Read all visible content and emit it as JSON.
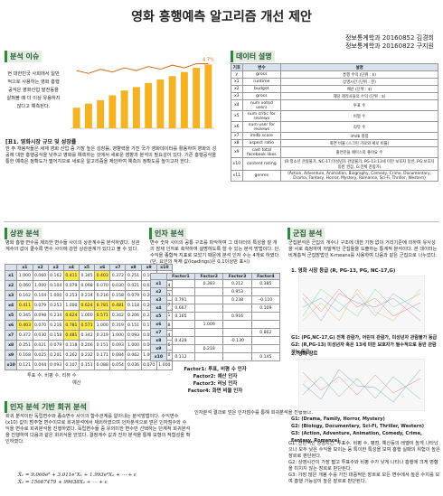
{
  "title": "영화 흥행예측 알고리즘 개선 제안",
  "authors": [
    "정보통계학과 20160852 김경희",
    "정보통계학과 20160822 구지원"
  ],
  "issue": {
    "heading": "분석 이슈",
    "text": "현 대한민국 사회에서 일반적으로 사용하는 영화 흥행공식은 영화산업 발전동을 살펴볼 때 더 이상 유용하지 않다고 예측된다.",
    "chart": {
      "bars": [
        30,
        36,
        41,
        48,
        55,
        60,
        66,
        71,
        76,
        82,
        88,
        93
      ],
      "bar_color": "#f5b324",
      "line": [
        4.2,
        4.0,
        4.3,
        4.1,
        4.4,
        4.2,
        4.5,
        4.3,
        4.6,
        4.4,
        4.7,
        4.7
      ],
      "line_color": "#e06c1b",
      "ylim": [
        0,
        100
      ],
      "y2lim": [
        0,
        5
      ],
      "annotation": "4.7%"
    },
    "caption": "[표1. 영화시장 규모 및 성장률",
    "paragraph": "한 주 개봉작들은 세계 영화 산업 중 가장 높은 성장률, 영향력을 가진 국가 영화데이터를 활용하여 영화의 성공에 대한 흥행공식을 낮추고 영화를 예측하는 것에서 새로운 영향과 분석의 필요성이 있다. 기존 흥행공식을 통한 예측은 정확도가 떨어지므로 새로운 알고리즘을 제안하여 예측의 정확도를 높이고자 한다."
  },
  "data_desc": {
    "heading": "데이터 설명",
    "columns": [
      "기호",
      "변수",
      "설명"
    ],
    "rows": [
      [
        "y",
        "gross",
        "흥행 수익 (단위 : $)"
      ],
      [
        "x1",
        "runtime",
        "상영시간 (단위 : 분)"
      ],
      [
        "x2",
        "budget",
        "예산 (단위 : $)"
      ],
      [
        "x3",
        "gross",
        "해당 제작사들의 수익 (단위 : $)"
      ],
      [
        "x4",
        "num voted users",
        "투표 수"
      ],
      [
        "x5",
        "num critic for reviews",
        "비평 수"
      ],
      [
        "x6",
        "num user for reviews",
        "리뷰 수"
      ],
      [
        "x7",
        "imdb score",
        "imdb 평점"
      ],
      [
        "x8",
        "aspect ratio",
        "화면 비율 (스크린 가로와 세로 비율)"
      ],
      [
        "x9",
        "cast total facebook likes",
        "출연진들 페이스북 좋아요 수"
      ],
      [
        "x10",
        "content rating",
        "(R:청소년 관람불가, NC-17:미성년자 관람불가, PG-13:13세 미만 보호자 동반, PG:보호자 동반 권장, G:전체 관람가)"
      ],
      [
        "x11",
        "genres",
        "(Action, Adventure, Animation, Biography, Comedy, Crime, Documentary, Drama, Fantasy, Horror, Mystery, Romance, Sci-Fi, Thriller, Western)"
      ]
    ]
  },
  "correlation": {
    "heading": "상관 분석",
    "text": "영화 흥행 변수를 제외한 변수들 사이의 상관계수를 분석하였다. 상관계수의 값이 클수록 변수 사이에 강한 상관관계가 있다고 볼 수 있다.",
    "labels": [
      "x1",
      "x2",
      "x3",
      "x4",
      "x5",
      "x6",
      "x7",
      "x8",
      "x9",
      "x10"
    ],
    "highlight_color": "#ffe94d",
    "rows": [
      [
        "1.000",
        "0.060",
        "0.162",
        "0.411",
        "0.345",
        "0.403",
        "0.372",
        "0.251",
        "0.168",
        "0.121"
      ],
      [
        "0.060",
        "1.000",
        "0.104",
        "0.079",
        "0.098",
        "0.070",
        "0.030",
        "0.021",
        "0.025",
        "0.044"
      ],
      [
        "0.162",
        "0.104",
        "1.000",
        "0.253",
        "0.234",
        "0.216",
        "0.158",
        "0.079",
        "0.201",
        "0.093"
      ],
      [
        "0.411",
        "0.079",
        "0.253",
        "1.000",
        "0.624",
        "0.781",
        "0.481",
        "0.118",
        "0.262",
        "0.107"
      ],
      [
        "0.345",
        "0.098",
        "0.234",
        "0.624",
        "1.000",
        "0.571",
        "0.342",
        "0.206",
        "0.232",
        "0.151"
      ],
      [
        "0.403",
        "0.070",
        "0.216",
        "0.781",
        "0.571",
        "1.000",
        "0.319",
        "0.151",
        "0.171",
        "0.088"
      ],
      [
        "0.372",
        "0.030",
        "0.158",
        "0.481",
        "0.342",
        "0.319",
        "1.000",
        "0.093",
        "0.084",
        "0.054"
      ],
      [
        "0.251",
        "0.021",
        "0.079",
        "0.118",
        "0.206",
        "0.151",
        "0.093",
        "1.000",
        "0.062",
        "0.036"
      ],
      [
        "0.168",
        "0.025",
        "0.201",
        "0.262",
        "0.232",
        "0.171",
        "0.084",
        "0.062",
        "1.000",
        "0.070"
      ],
      [
        "0.121",
        "0.044",
        "0.093",
        "0.107",
        "0.151",
        "0.088",
        "0.054",
        "0.036",
        "0.070",
        "1.000"
      ]
    ],
    "notes": [
      "투표 수, 비평 수, 리뷰 수",
      "예산"
    ]
  },
  "factor": {
    "heading": "인자 분석",
    "text": "변수 숫자 사이의 공통 구조를 파악하여 그 데이터의 특성을 잘 개의 잠재 인자로 축약하여 설명하도록 할 수 있는 분석 방법이다. 단, 수익을 종합적 지표로 보았기 때문에 분석 인자 수는 4개로 하였다. (단, 요인의 적재 값(loadings)은 0.1이상만 표시)",
    "columns": [
      "Factor1",
      "Factor2",
      "Factor3",
      "Factor4"
    ],
    "labels": [
      "x1",
      "x2",
      "x3",
      "x4",
      "x5",
      "x6",
      "x7",
      "x8",
      "x9",
      "x10"
    ],
    "rows": [
      [
        null,
        "0.383",
        "0.212",
        "0.385"
      ],
      [
        null,
        null,
        "0.953",
        null
      ],
      [
        "0.791",
        null,
        "0.238",
        "-0.110"
      ],
      [
        "0.667",
        null,
        null,
        "0.109"
      ],
      [
        "0.165",
        null,
        "0.916",
        null
      ],
      [
        null,
        "1.009",
        null,
        null
      ],
      [
        null,
        null,
        null,
        "0.862"
      ],
      [
        "0.429",
        null,
        "-0.130",
        null
      ],
      [
        null,
        "0.218",
        null,
        null
      ],
      [
        "0.112",
        null,
        null,
        "0.145"
      ]
    ],
    "factors": [
      "Factor1: 투표, 비평 수 인자",
      "Factor2: 예산 인자",
      "Factor3: 러닝 인자",
      "Factor4: 화면 비율 인자"
    ],
    "result": "인자분석 결과로 얻은 인자점수를 통해 회귀분석을 진행했다."
  },
  "regression": {
    "heading": "인자 분석 기반 회귀 분석",
    "text": "회귀 분석이란 독립변수와 종속변수 사이의 함수관계를 알아내는 분석방법이다. 수익변수(x10) 값이 범주형 변수이므로 회귀분석에서 제외하였으며 인자분석으로 얻은 인자점수와 수익을 변수로 회귀분석을 진행하였다. 독립변수들 중 유의미한 변수만 선택하는 단계적 회귀분석을 진행하여 다음과 같은 회귀식을 얻었다. 결정계수 값과 잔차 분석을 통해 모형의 적합성을 확인하였다.",
    "formulas": [
      "X̂₁ = 9.066e⁸ + 3.011e⁷X₁ + 1.993e⁸X₂ + ⋯ + ε",
      "X̂₂ = 15667479 + 99638X₂ + ⋯ + ε"
    ]
  },
  "cluster": {
    "heading": "군집 분석",
    "text": "군집분석은 군집의 개수나 구조에 대한 가정 없이 거리기준에 의하여 유사성을 서로 측정하여 자발적인 군집들을 도출하는 통계적 분석이다. 본 데이터는 비계층적 군집방법인 K-means를 사용하여 다음과 같은 군집으로 나누었다.",
    "sub1": "1. 영화 시장 등급 (R, PG-13, PG, NC-17,G)",
    "groups1": [
      "G1: (PG,NC-17,G) 전체 관람가, 어린이 관람가, 미성년자 관람불가 등급",
      "G2: (R,PG-13) 미성년자 혹은 13세 미만 보호자가 필수적으로 동반 관람 가능 등급"
    ],
    "sub2": "2. 영화 장르",
    "groups2": [
      "G1: (Drama, Family, Horror, Mystery)",
      "G2: (Biology, Documentary, Sci-Fi, Thriller, Western)",
      "G3: (Action, Adventure, Animation, Comedy, Crime, Fantasy, Romance)"
    ],
    "conclusions": [
      "G1: 전반적인 상영시간, 투표수, 비평 수, 평점, 예산등의 레벨이 높게 나타났으나 모두 낮은 수익을 보이는 등 특이한 특성을 보여 흥행 실패의 위험이 높은 장르로 판단된다.",
      "G2: 상영시간이 가장 짧고 투표수와 비평 수가 낮게 나타나 흥행에 크게 영향을 미치지 않는 장르로 판단된다.",
      "G3: 가장 많은 개봉 수를 가진 대중적인 장르로 모든 변수에서 높은 수치를 보여 흥행 가능성이 높은 장르로 판단된다."
    ]
  }
}
